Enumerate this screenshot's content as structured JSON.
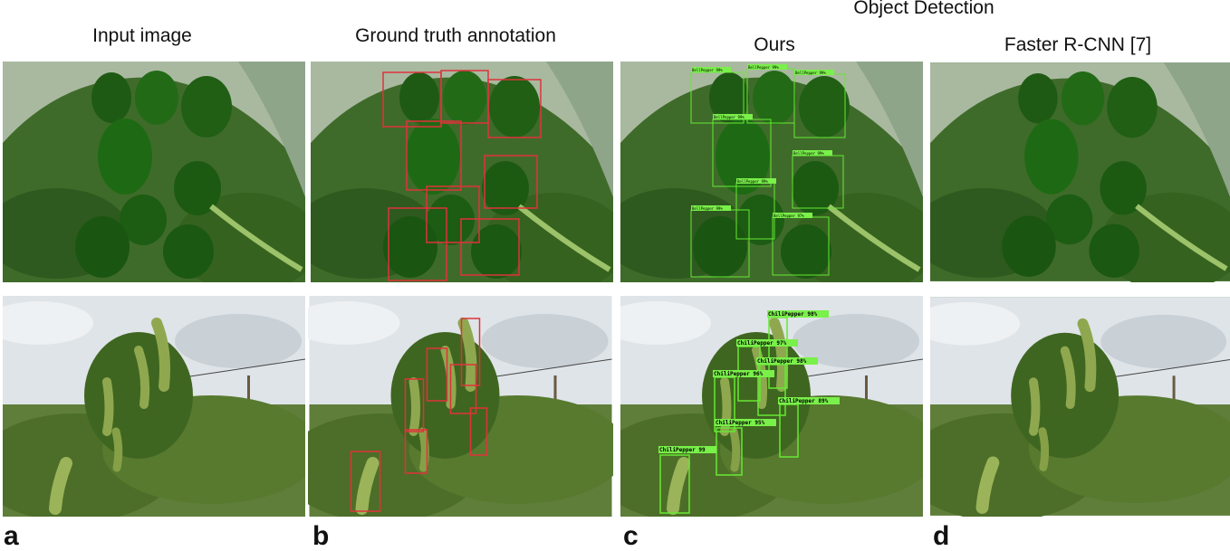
{
  "headers": {
    "col_a": "Input image",
    "col_b": "Ground truth annotation",
    "group": "Object Detection",
    "col_c": "Ours",
    "col_d": "Faster R-CNN [7]"
  },
  "panel_letters": {
    "a": "a",
    "b": "b",
    "c": "c",
    "d": "d"
  },
  "detection_labels": {
    "row1": [
      "BellPepper 99%",
      "BellPepper 99%",
      "BellPepper 99%",
      "BellPepper 99%",
      "BellPepper 99%",
      "BellPepper 99%",
      "BellPepper 99%",
      "BellPepper 97%"
    ],
    "row2": [
      "ChiliPepper 98%",
      "ChiliPepper 97%",
      "ChiliPepper 98%",
      "ChiliPepper 96%",
      "ChiliPepper 89%",
      "ChiliPepper 95%",
      "ChiliPepper 99"
    ]
  },
  "colors": {
    "gt_box": "#e0323a",
    "det_box": "#66e833",
    "label_bg": "#7af04a"
  }
}
